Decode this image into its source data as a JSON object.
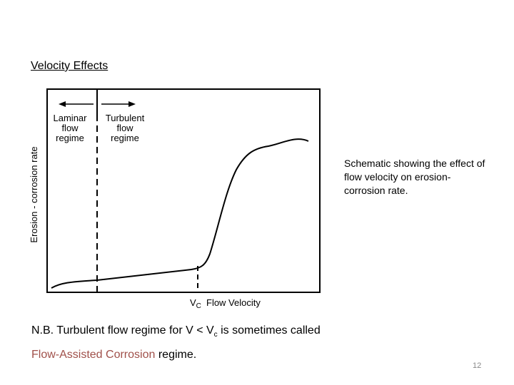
{
  "slide": {
    "title": "Velocity Effects",
    "caption": "Schematic showing the effect of flow velocity on erosion-corrosion rate.",
    "note": {
      "prefix": "N.B.   Turbulent flow regime for V < V",
      "subscript": "c",
      "middle": " is sometimes called",
      "highlight": "Flow-Assisted Corrosion",
      "suffix": " regime."
    },
    "page_number": "12"
  },
  "figure": {
    "laminar_label": [
      "Laminar",
      "flow",
      "regime"
    ],
    "turbulent_label": [
      "Turbulent",
      "flow",
      "regime"
    ],
    "ylabel": "Erosion - corrosion rate",
    "vc_label": "V",
    "vc_sub": "C",
    "xlabel": "Flow Velocity"
  }
}
